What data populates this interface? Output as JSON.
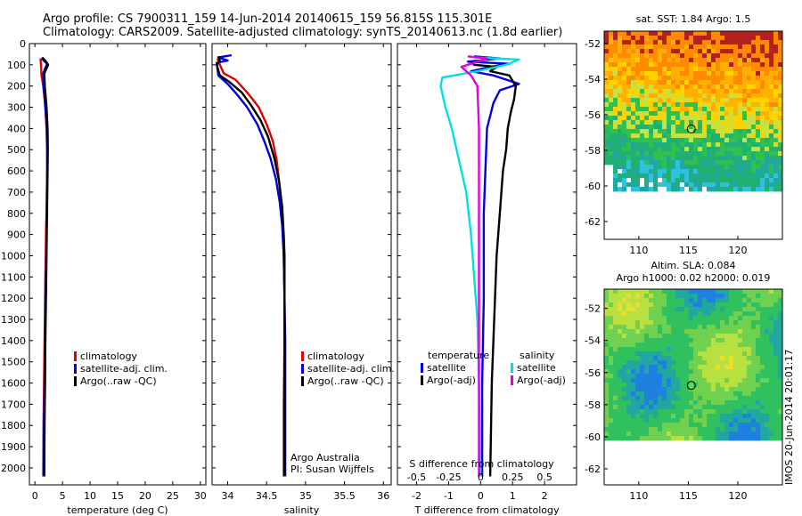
{
  "header": {
    "title_line1": "Argo profile: CS 7900311_159 14-Jun-2014 20140615_159 56.815S 115.301E",
    "title_line2": "Climatology: CARS2009. Satellite-adjusted climatology: synTS_20140613.nc (1.8d earlier)"
  },
  "colors": {
    "climatology": "#e00000",
    "satellite": "#0000e0",
    "argo": "#000000",
    "salinity_satellite": "#00e0e0",
    "salinity_argo": "#e000e0"
  },
  "chart_data": [
    {
      "type": "line",
      "panel": "temperature",
      "xlabel": "temperature (deg C)",
      "xlim": [
        -1,
        31
      ],
      "xticks": [
        0,
        5,
        10,
        15,
        20,
        25,
        30
      ],
      "ylim": [
        0,
        2080
      ],
      "yticks": [
        0,
        100,
        200,
        300,
        400,
        500,
        600,
        700,
        800,
        900,
        1000,
        1100,
        1200,
        1300,
        1400,
        1500,
        1600,
        1700,
        1800,
        1900,
        2000
      ],
      "legend": [
        "climatology",
        "satellite-adj. clim.",
        "Argo(..raw -QC)"
      ],
      "legend_position": "lower-right",
      "series": [
        {
          "name": "climatology",
          "color": "#e00000",
          "x": [
            1.0,
            1.1,
            1.2,
            1.5,
            1.9,
            2.1,
            2.2,
            2.2,
            2.15,
            2.1,
            2.0,
            1.95,
            1.9,
            1.85,
            1.8,
            1.7,
            1.65,
            1.6,
            1.55,
            1.5
          ],
          "y": [
            70,
            100,
            150,
            200,
            300,
            400,
            500,
            600,
            700,
            800,
            900,
            1000,
            1100,
            1200,
            1300,
            1500,
            1600,
            1700,
            1800,
            2040
          ]
        },
        {
          "name": "satellite-adj. clim.",
          "color": "#0000e0",
          "x": [
            1.2,
            1.6,
            2.2,
            1.5,
            1.6,
            1.9,
            2.15,
            2.25,
            2.25,
            2.2,
            2.15,
            2.1,
            2.05,
            2.0,
            1.95,
            1.9,
            1.8,
            1.75,
            1.7,
            1.65,
            1.6
          ],
          "y": [
            70,
            80,
            95,
            140,
            200,
            300,
            400,
            500,
            600,
            700,
            800,
            900,
            1000,
            1100,
            1200,
            1300,
            1500,
            1600,
            1700,
            1800,
            2040
          ]
        },
        {
          "name": "Argo(..raw -QC)",
          "color": "#000000",
          "x": [
            1.3,
            1.9,
            2.4,
            1.7,
            1.8,
            2.1,
            2.3,
            2.35,
            2.3,
            2.25,
            2.2,
            2.15,
            2.1,
            2.05,
            2.0,
            1.9,
            1.85,
            1.8,
            1.75,
            1.7
          ],
          "y": [
            65,
            80,
            100,
            140,
            200,
            300,
            400,
            500,
            600,
            700,
            800,
            900,
            1000,
            1100,
            1200,
            1400,
            1600,
            1700,
            1800,
            2040
          ]
        }
      ]
    },
    {
      "type": "line",
      "panel": "salinity",
      "xlabel": "salinity",
      "xlim": [
        33.8,
        36.1
      ],
      "xticks": [
        34,
        34.5,
        35,
        35.5,
        36
      ],
      "xticklabels": [
        "34",
        "34.5",
        "35",
        "35.5",
        "36"
      ],
      "ylim": [
        0,
        2080
      ],
      "legend": [
        "climatology",
        "satellite-adj. clim.",
        "Argo(..raw -QC)"
      ],
      "legend_position": "lower-right",
      "annotation": [
        "Argo Australia",
        "PI: Susan Wijffels"
      ],
      "series": [
        {
          "name": "climatology",
          "color": "#e00000",
          "x": [
            33.87,
            33.9,
            33.95,
            34.1,
            34.25,
            34.4,
            34.5,
            34.58,
            34.63,
            34.66,
            34.69,
            34.71,
            34.72,
            34.73,
            34.73,
            34.72,
            34.72
          ],
          "y": [
            70,
            100,
            140,
            170,
            230,
            300,
            380,
            460,
            550,
            650,
            760,
            860,
            1000,
            1200,
            1400,
            1700,
            2040
          ]
        },
        {
          "name": "satellite-adj. clim.",
          "color": "#0000e0",
          "x": [
            34.05,
            33.88,
            34.0,
            33.86,
            33.88,
            34.0,
            34.12,
            34.25,
            34.38,
            34.47,
            34.55,
            34.62,
            34.67,
            34.7,
            34.72,
            34.73,
            34.74,
            34.74,
            34.74,
            34.74
          ],
          "y": [
            55,
            65,
            80,
            90,
            150,
            190,
            240,
            300,
            380,
            460,
            540,
            640,
            750,
            860,
            1000,
            1200,
            1400,
            1600,
            1800,
            2040
          ]
        },
        {
          "name": "Argo(..raw -QC)",
          "color": "#000000",
          "x": [
            33.88,
            33.9,
            33.86,
            33.9,
            34.02,
            34.18,
            34.3,
            34.42,
            34.52,
            34.6,
            34.66,
            34.7,
            34.72,
            34.73,
            34.73,
            34.73,
            34.73,
            34.73
          ],
          "y": [
            60,
            80,
            100,
            150,
            180,
            230,
            290,
            360,
            440,
            540,
            650,
            770,
            900,
            1000,
            1200,
            1400,
            1600,
            2040
          ]
        }
      ]
    },
    {
      "type": "line",
      "panel": "difference",
      "xlabel": "T difference from climatology",
      "xlabel_top": "S difference from climatology",
      "xlim": [
        -2.6,
        3.0
      ],
      "xticks": [
        -2,
        -1,
        0,
        1,
        2
      ],
      "xticks_top_labels": [
        "-0.5",
        "-0.25",
        "0",
        "0.25",
        "0.5"
      ],
      "ylim": [
        0,
        2080
      ],
      "legend": {
        "temperature_header": "temperature",
        "salinity_header": "salinity",
        "entries": [
          "satellite",
          "Argo(-adj)",
          "satellite",
          "Argo(-adj)"
        ]
      },
      "series": [
        {
          "name": "temperature satellite",
          "color": "#0000e0",
          "x": [
            -0.2,
            0.6,
            -0.4,
            0.9,
            0.3,
            -0.3,
            0.4,
            0.8,
            1.2,
            0.6,
            0.4,
            0.2,
            0.15,
            0.1,
            0.1,
            0.05,
            0.05
          ],
          "y": [
            60,
            70,
            85,
            95,
            110,
            130,
            150,
            170,
            190,
            220,
            280,
            400,
            600,
            800,
            1200,
            1600,
            2040
          ]
        },
        {
          "name": "temperature Argo(-adj)",
          "color": "#000000",
          "x": [
            -0.3,
            -0.2,
            0.5,
            0.3,
            0.9,
            1.1,
            1.05,
            0.95,
            0.85,
            0.8,
            0.7,
            0.6,
            0.5,
            0.45,
            0.35,
            0.3
          ],
          "y": [
            85,
            100,
            110,
            130,
            150,
            200,
            260,
            320,
            400,
            500,
            600,
            800,
            1000,
            1200,
            1600,
            2040
          ]
        },
        {
          "name": "salinity satellite",
          "color": "#00e0e0",
          "x": [
            -0.2,
            1.2,
            0.8,
            -0.1,
            -1.2,
            -1.25,
            -1.1,
            -0.9,
            -0.75,
            -0.6,
            -0.45,
            -0.3,
            -0.2,
            -0.1,
            -0.05,
            0.0
          ],
          "y": [
            65,
            75,
            100,
            130,
            160,
            200,
            300,
            400,
            500,
            600,
            700,
            900,
            1100,
            1300,
            1600,
            2040
          ]
        },
        {
          "name": "salinity Argo(-adj)",
          "color": "#e000e0",
          "x": [
            -0.4,
            0.2,
            -0.6,
            -0.3,
            -0.1,
            -0.05,
            -0.05,
            -0.05,
            -0.05
          ],
          "y": [
            60,
            70,
            110,
            150,
            200,
            400,
            800,
            1200,
            2040
          ]
        }
      ]
    },
    {
      "type": "heatmap",
      "panel": "sst_map",
      "title": "sat. SST: 1.84 Argo: 1.5",
      "xlim": [
        106.5,
        124.5
      ],
      "ylim": [
        -63.0,
        -51.3
      ],
      "xticks": [
        110,
        115,
        120
      ],
      "yticks": [
        -52,
        -54,
        -56,
        -58,
        -60,
        -62
      ],
      "marker": {
        "lon": 115.3,
        "lat": -56.8
      }
    },
    {
      "type": "heatmap",
      "panel": "sla_map",
      "title_line1": "Altim. SLA: 0.084",
      "title_line2": "Argo h1000: 0.02 h2000: 0.019",
      "xlim": [
        106.5,
        124.5
      ],
      "ylim": [
        -63.0,
        -50.8
      ],
      "xticks": [
        110,
        115,
        120
      ],
      "yticks": [
        -52,
        -54,
        -56,
        -58,
        -60,
        -62
      ],
      "marker": {
        "lon": 115.3,
        "lat": -56.8
      }
    }
  ],
  "footer": {
    "credit": "IMOS 20-Jun-2014 20:01:17"
  }
}
